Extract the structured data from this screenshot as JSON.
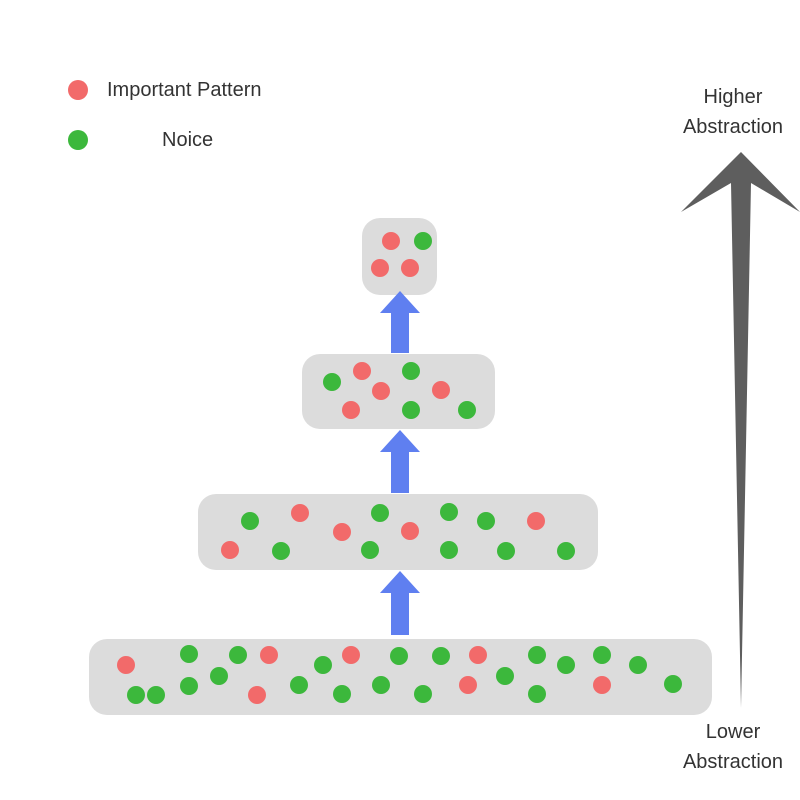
{
  "legend": {
    "important_label": "Important Pattern",
    "noise_label": "Noice"
  },
  "axis": {
    "higher_line1": "Higher",
    "higher_line2": "Abstraction",
    "lower_line1": "Lower",
    "lower_line2": "Abstraction"
  },
  "colors": {
    "important": "#f26a6a",
    "noise": "#3cb83c",
    "layer_fill": "#dcdcdc",
    "flow_arrow": "#5f7ff0",
    "abstraction_arrow": "#5e5e5e"
  },
  "layers": [
    {
      "level": 1,
      "important_count": 7,
      "noise_count": 19
    },
    {
      "level": 2,
      "important_count": 5,
      "noise_count": 10
    },
    {
      "level": 3,
      "important_count": 4,
      "noise_count": 4
    },
    {
      "level": 4,
      "important_count": 3,
      "noise_count": 1
    }
  ]
}
